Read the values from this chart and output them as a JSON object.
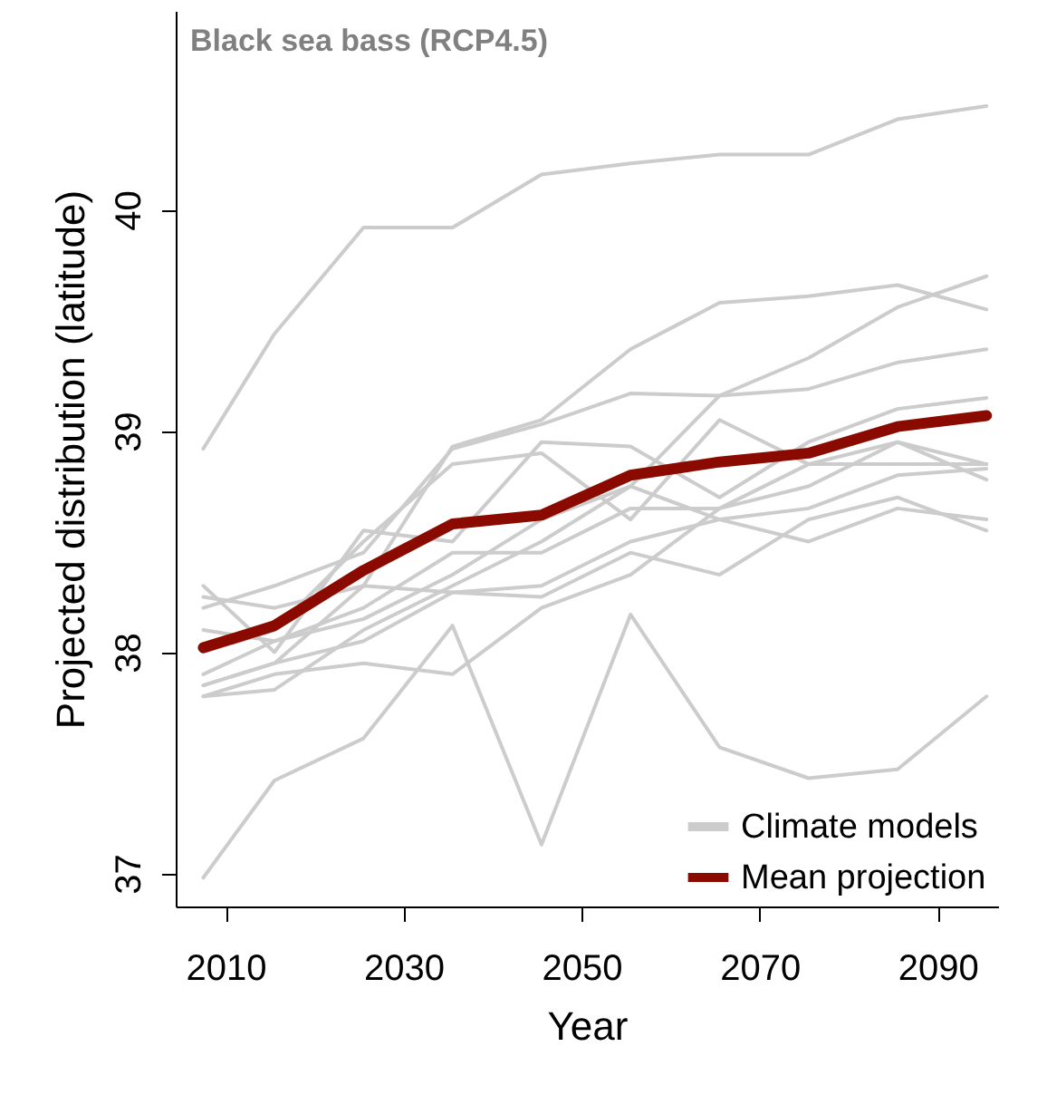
{
  "chart_data": {
    "type": "line",
    "title": "Black sea bass (RCP4.5)",
    "xlabel": "Year",
    "ylabel": "Projected distribution (latitude)",
    "x": [
      2007.5,
      2015.5,
      2025.5,
      2035.5,
      2045.5,
      2055.5,
      2065.5,
      2075.5,
      2085.5,
      2095.5
    ],
    "xlim": [
      2004.4,
      2096.8
    ],
    "xticks": [
      2010,
      2030,
      2050,
      2070,
      2090
    ],
    "ylim": [
      36.85,
      40.9
    ],
    "yticks": [
      37,
      38,
      39,
      40
    ],
    "grid": false,
    "legend": "bottom right",
    "marker": "none",
    "line_style": "solid",
    "series": [
      {
        "name": "Climate models",
        "color": "#cccccc",
        "values": [
          38.92,
          39.44,
          39.92,
          39.92,
          40.16,
          40.21,
          40.25,
          40.25,
          40.41,
          40.47
        ]
      },
      {
        "color": "#cccccc",
        "values": [
          36.98,
          37.42,
          37.61,
          38.12,
          37.13,
          38.17,
          37.57,
          37.43,
          37.47,
          37.8
        ]
      },
      {
        "color": "#cccccc",
        "values": [
          37.85,
          37.95,
          38.3,
          38.93,
          39.05,
          39.37,
          39.58,
          39.61,
          39.66,
          39.55
        ]
      },
      {
        "color": "#cccccc",
        "values": [
          38.2,
          38.3,
          38.45,
          38.92,
          39.03,
          39.17,
          39.16,
          39.19,
          39.31,
          39.37
        ]
      },
      {
        "color": "#cccccc",
        "values": [
          37.8,
          37.83,
          38.1,
          38.3,
          38.5,
          38.75,
          39.16,
          39.33,
          39.56,
          39.7
        ]
      },
      {
        "color": "#cccccc",
        "values": [
          38.3,
          38.0,
          38.55,
          38.5,
          38.95,
          38.93,
          38.7,
          38.95,
          39.1,
          39.15
        ]
      },
      {
        "color": "#cccccc",
        "values": [
          37.9,
          38.05,
          38.2,
          38.45,
          38.45,
          38.65,
          38.65,
          38.85,
          38.95,
          38.85
        ]
      },
      {
        "color": "#cccccc",
        "values": [
          38.25,
          38.2,
          38.3,
          38.27,
          38.25,
          38.45,
          38.35,
          38.6,
          38.7,
          38.55
        ]
      },
      {
        "color": "#cccccc",
        "values": [
          37.85,
          37.95,
          38.05,
          38.27,
          38.3,
          38.5,
          38.6,
          38.65,
          38.8,
          38.83
        ]
      },
      {
        "color": "#cccccc",
        "values": [
          37.8,
          37.9,
          37.95,
          37.9,
          38.2,
          38.35,
          38.65,
          38.75,
          38.95,
          38.78
        ]
      },
      {
        "color": "#cccccc",
        "values": [
          38.1,
          38.05,
          38.15,
          38.35,
          38.6,
          38.75,
          38.6,
          38.5,
          38.65,
          38.6
        ]
      },
      {
        "color": "#cccccc",
        "values": [
          38.0,
          38.1,
          38.5,
          38.85,
          38.9,
          38.6,
          39.05,
          38.85,
          38.85,
          38.85
        ]
      },
      {
        "name": "Mean projection",
        "color": "#8b0a00",
        "values": [
          38.02,
          38.12,
          38.37,
          38.58,
          38.62,
          38.8,
          38.86,
          38.9,
          39.02,
          39.07
        ]
      }
    ]
  }
}
